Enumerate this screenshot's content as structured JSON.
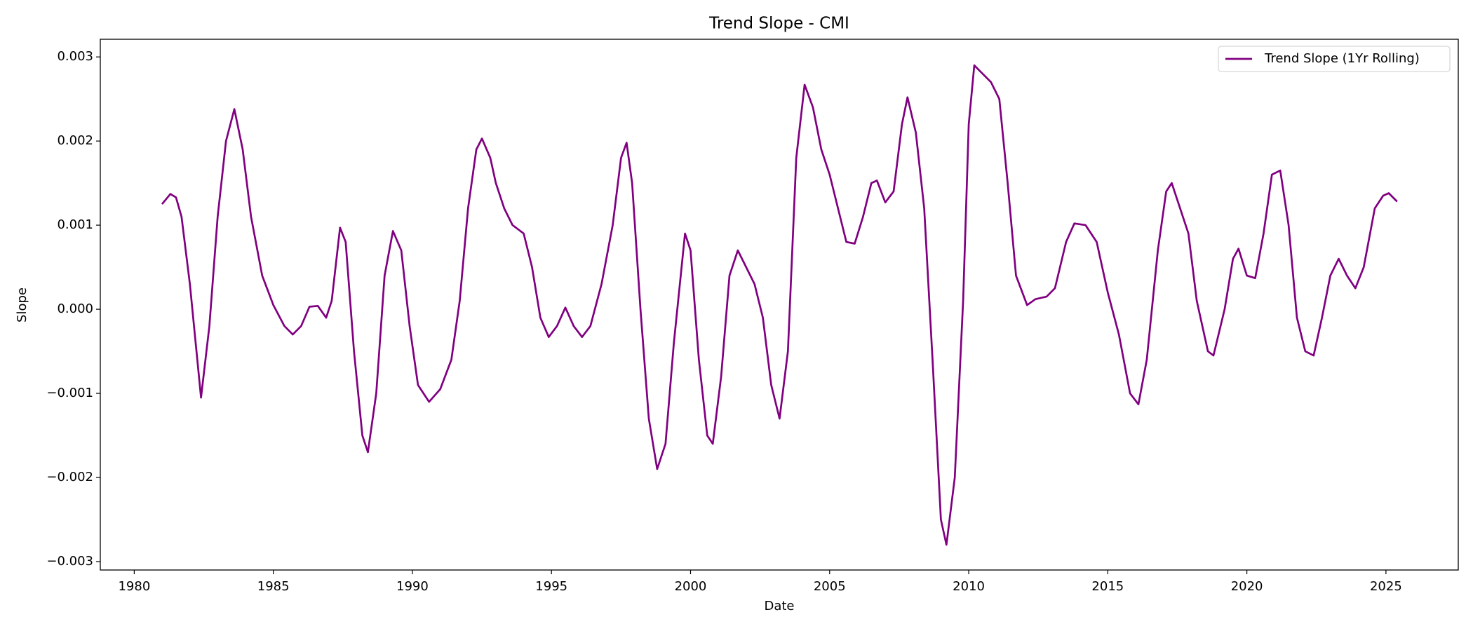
{
  "chart_data": {
    "type": "line",
    "title": "Trend Slope - CMI",
    "x_label": "Date",
    "y_label": "Slope",
    "xlim": [
      1978.78,
      2027.6
    ],
    "ylim": [
      -0.0031,
      0.00321
    ],
    "xticks": [
      1980,
      1985,
      1990,
      1995,
      2000,
      2005,
      2010,
      2015,
      2020,
      2025
    ],
    "yticks": [
      {
        "value": -0.003,
        "label": "−0.003"
      },
      {
        "value": -0.002,
        "label": "−0.002"
      },
      {
        "value": -0.001,
        "label": "−0.001"
      },
      {
        "value": 0,
        "label": "0.000"
      },
      0.001,
      0.002,
      0.003
    ],
    "legend": "upper right",
    "series": [
      {
        "name": "Trend Slope (1Yr Rolling)",
        "color": "#800080",
        "x": [
          1981.0,
          1981.3,
          1981.5,
          1981.7,
          1982.0,
          1982.4,
          1982.7,
          1983.0,
          1983.3,
          1983.6,
          1983.9,
          1984.2,
          1984.6,
          1985.0,
          1985.4,
          1985.7,
          1986.0,
          1986.3,
          1986.6,
          1986.9,
          1987.1,
          1987.4,
          1987.6,
          1987.9,
          1988.2,
          1988.4,
          1988.7,
          1989.0,
          1989.3,
          1989.6,
          1989.9,
          1990.2,
          1990.6,
          1991.0,
          1991.4,
          1991.7,
          1992.0,
          1992.3,
          1992.5,
          1992.8,
          1993.0,
          1993.3,
          1993.6,
          1994.0,
          1994.3,
          1994.6,
          1994.9,
          1995.2,
          1995.5,
          1995.8,
          1996.1,
          1996.4,
          1996.8,
          1997.2,
          1997.5,
          1997.7,
          1997.9,
          1998.2,
          1998.5,
          1998.8,
          1999.1,
          1999.4,
          1999.8,
          2000.0,
          2000.3,
          2000.6,
          2000.8,
          2001.1,
          2001.4,
          2001.7,
          2002.0,
          2002.3,
          2002.6,
          2002.9,
          2003.2,
          2003.5,
          2003.8,
          2004.1,
          2004.4,
          2004.7,
          2005.0,
          2005.3,
          2005.6,
          2005.9,
          2006.2,
          2006.5,
          2006.7,
          2007.0,
          2007.3,
          2007.6,
          2007.8,
          2008.1,
          2008.4,
          2008.7,
          2009.0,
          2009.2,
          2009.5,
          2009.8,
          2010.0,
          2010.2,
          2010.5,
          2010.8,
          2011.1,
          2011.4,
          2011.7,
          2012.1,
          2012.4,
          2012.8,
          2013.1,
          2013.5,
          2013.8,
          2014.2,
          2014.6,
          2015.0,
          2015.4,
          2015.8,
          2016.1,
          2016.4,
          2016.8,
          2017.1,
          2017.3,
          2017.6,
          2017.9,
          2018.2,
          2018.6,
          2018.8,
          2019.2,
          2019.5,
          2019.7,
          2020.0,
          2020.3,
          2020.6,
          2020.9,
          2021.2,
          2021.5,
          2021.8,
          2022.1,
          2022.4,
          2022.7,
          2023.0,
          2023.3,
          2023.6,
          2023.9,
          2024.2,
          2024.6,
          2024.9,
          2025.1,
          2025.4
        ],
        "values": [
          0.00125,
          0.00137,
          0.00133,
          0.0011,
          0.0003,
          -0.00105,
          -0.0002,
          0.0011,
          0.002,
          0.00238,
          0.0019,
          0.0011,
          0.0004,
          5e-05,
          -0.0002,
          -0.0003,
          -0.0002,
          3e-05,
          4e-05,
          -0.0001,
          0.0001,
          0.00097,
          0.0008,
          -0.0005,
          -0.0015,
          -0.0017,
          -0.001,
          0.0004,
          0.00093,
          0.0007,
          -0.0002,
          -0.0009,
          -0.0011,
          -0.00095,
          -0.0006,
          0.0001,
          0.0012,
          0.0019,
          0.00203,
          0.0018,
          0.0015,
          0.0012,
          0.001,
          0.0009,
          0.0005,
          -0.0001,
          -0.00033,
          -0.0002,
          2e-05,
          -0.0002,
          -0.00033,
          -0.0002,
          0.0003,
          0.001,
          0.0018,
          0.00198,
          0.0015,
          0.0,
          -0.0013,
          -0.0019,
          -0.0016,
          -0.0004,
          0.0009,
          0.0007,
          -0.0006,
          -0.0015,
          -0.0016,
          -0.0008,
          0.0004,
          0.0007,
          0.0005,
          0.0003,
          -0.0001,
          -0.0009,
          -0.0013,
          -0.0005,
          0.0018,
          0.00267,
          0.0024,
          0.0019,
          0.0016,
          0.0012,
          0.0008,
          0.00078,
          0.0011,
          0.0015,
          0.00153,
          0.00127,
          0.0014,
          0.0022,
          0.00252,
          0.0021,
          0.0012,
          -0.0006,
          -0.0025,
          -0.0028,
          -0.002,
          0.0001,
          0.0022,
          0.0029,
          0.0028,
          0.0027,
          0.0025,
          0.0015,
          0.0004,
          5e-05,
          0.00012,
          0.00015,
          0.00025,
          0.0008,
          0.00102,
          0.001,
          0.0008,
          0.0002,
          -0.0003,
          -0.001,
          -0.00113,
          -0.0006,
          0.0007,
          0.0014,
          0.0015,
          0.0012,
          0.0009,
          0.0001,
          -0.0005,
          -0.00055,
          0.0,
          0.0006,
          0.00072,
          0.0004,
          0.00037,
          0.0009,
          0.0016,
          0.00165,
          0.001,
          -0.0001,
          -0.0005,
          -0.00055,
          -0.0001,
          0.0004,
          0.0006,
          0.0004,
          0.00025,
          0.0005,
          0.0012,
          0.00135,
          0.00138,
          0.00128
        ]
      }
    ]
  }
}
